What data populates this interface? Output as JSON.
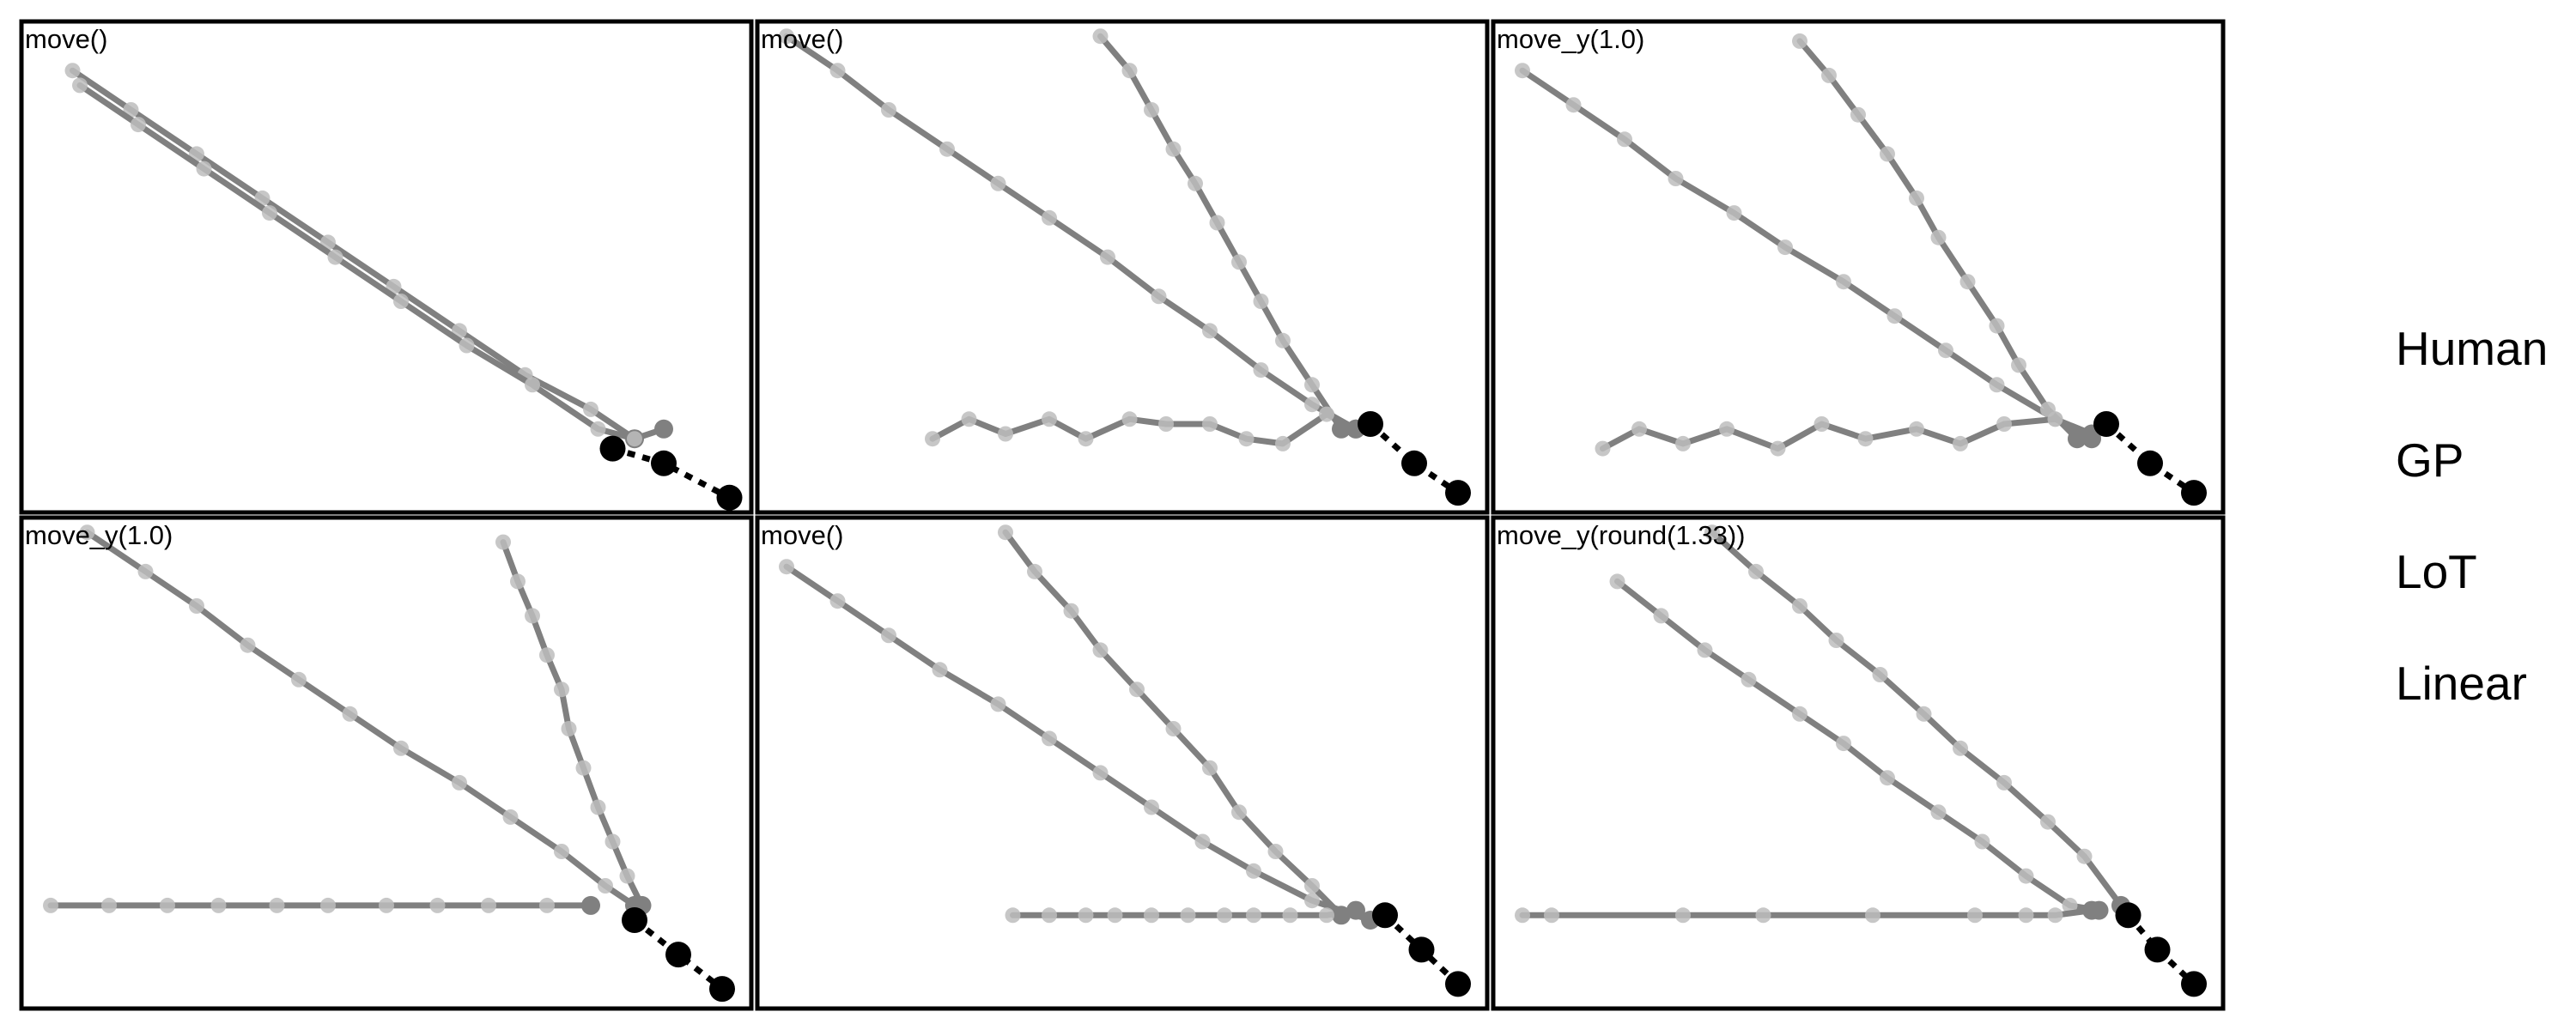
{
  "colors": {
    "trajectory_line": "#808080",
    "trajectory_point": "#bdbdbd",
    "endpoint": "#808080",
    "target": "#000000",
    "frame": "#000000"
  },
  "legend": [
    "Human",
    "GP",
    "LoT",
    "Linear"
  ],
  "panels": [
    {
      "title": "move()",
      "trajectories": [
        {
          "points": [
            [
              0.07,
              0.1
            ],
            [
              0.15,
              0.18
            ],
            [
              0.24,
              0.27
            ],
            [
              0.33,
              0.36
            ],
            [
              0.42,
              0.45
            ],
            [
              0.51,
              0.54
            ],
            [
              0.6,
              0.63
            ],
            [
              0.69,
              0.72
            ],
            [
              0.78,
              0.79
            ],
            [
              0.84,
              0.85
            ]
          ]
        },
        {
          "points": [
            [
              0.08,
              0.13
            ],
            [
              0.16,
              0.21
            ],
            [
              0.25,
              0.3
            ],
            [
              0.34,
              0.39
            ],
            [
              0.43,
              0.48
            ],
            [
              0.52,
              0.57
            ],
            [
              0.61,
              0.66
            ],
            [
              0.7,
              0.74
            ],
            [
              0.79,
              0.83
            ],
            [
              0.84,
              0.85
            ],
            [
              0.88,
              0.83
            ]
          ]
        }
      ],
      "targets": [
        [
          0.81,
          0.87
        ],
        [
          0.88,
          0.9
        ],
        [
          0.97,
          0.97
        ]
      ]
    },
    {
      "title": "move()",
      "trajectories": [
        {
          "points": [
            [
              0.04,
              0.03
            ],
            [
              0.11,
              0.1
            ],
            [
              0.18,
              0.18
            ],
            [
              0.26,
              0.26
            ],
            [
              0.33,
              0.33
            ],
            [
              0.4,
              0.4
            ],
            [
              0.48,
              0.48
            ],
            [
              0.55,
              0.56
            ],
            [
              0.62,
              0.63
            ],
            [
              0.69,
              0.71
            ],
            [
              0.76,
              0.78
            ],
            [
              0.82,
              0.83
            ]
          ]
        },
        {
          "points": [
            [
              0.47,
              0.03
            ],
            [
              0.51,
              0.1
            ],
            [
              0.54,
              0.18
            ],
            [
              0.57,
              0.26
            ],
            [
              0.6,
              0.33
            ],
            [
              0.63,
              0.41
            ],
            [
              0.66,
              0.49
            ],
            [
              0.69,
              0.57
            ],
            [
              0.72,
              0.65
            ],
            [
              0.76,
              0.74
            ],
            [
              0.8,
              0.83
            ]
          ]
        },
        {
          "points": [
            [
              0.24,
              0.85
            ],
            [
              0.29,
              0.81
            ],
            [
              0.34,
              0.84
            ],
            [
              0.4,
              0.81
            ],
            [
              0.45,
              0.85
            ],
            [
              0.51,
              0.81
            ],
            [
              0.56,
              0.82
            ],
            [
              0.62,
              0.82
            ],
            [
              0.67,
              0.85
            ],
            [
              0.72,
              0.86
            ],
            [
              0.78,
              0.8
            ],
            [
              0.82,
              0.83
            ]
          ]
        }
      ],
      "targets": [
        [
          0.84,
          0.82
        ],
        [
          0.9,
          0.9
        ],
        [
          0.96,
          0.96
        ]
      ]
    },
    {
      "title": "move_y(1.0)",
      "trajectories": [
        {
          "points": [
            [
              0.04,
              0.1
            ],
            [
              0.11,
              0.17
            ],
            [
              0.18,
              0.24
            ],
            [
              0.25,
              0.32
            ],
            [
              0.33,
              0.39
            ],
            [
              0.4,
              0.46
            ],
            [
              0.48,
              0.53
            ],
            [
              0.55,
              0.6
            ],
            [
              0.62,
              0.67
            ],
            [
              0.69,
              0.74
            ],
            [
              0.77,
              0.81
            ],
            [
              0.82,
              0.85
            ]
          ]
        },
        {
          "points": [
            [
              0.42,
              0.04
            ],
            [
              0.46,
              0.11
            ],
            [
              0.5,
              0.19
            ],
            [
              0.54,
              0.27
            ],
            [
              0.58,
              0.36
            ],
            [
              0.61,
              0.44
            ],
            [
              0.65,
              0.53
            ],
            [
              0.69,
              0.62
            ],
            [
              0.72,
              0.7
            ],
            [
              0.76,
              0.79
            ],
            [
              0.8,
              0.85
            ]
          ]
        },
        {
          "points": [
            [
              0.15,
              0.87
            ],
            [
              0.2,
              0.83
            ],
            [
              0.26,
              0.86
            ],
            [
              0.32,
              0.83
            ],
            [
              0.39,
              0.87
            ],
            [
              0.45,
              0.82
            ],
            [
              0.51,
              0.85
            ],
            [
              0.58,
              0.83
            ],
            [
              0.64,
              0.86
            ],
            [
              0.7,
              0.82
            ],
            [
              0.77,
              0.81
            ],
            [
              0.82,
              0.84
            ]
          ]
        }
      ],
      "targets": [
        [
          0.84,
          0.82
        ],
        [
          0.9,
          0.9
        ],
        [
          0.96,
          0.96
        ]
      ]
    },
    {
      "title": "move_y(1.0)",
      "trajectories": [
        {
          "points": [
            [
              0.09,
              0.03
            ],
            [
              0.17,
              0.11
            ],
            [
              0.24,
              0.18
            ],
            [
              0.31,
              0.26
            ],
            [
              0.38,
              0.33
            ],
            [
              0.45,
              0.4
            ],
            [
              0.52,
              0.47
            ],
            [
              0.6,
              0.54
            ],
            [
              0.67,
              0.61
            ],
            [
              0.74,
              0.68
            ],
            [
              0.8,
              0.75
            ],
            [
              0.84,
              0.79
            ]
          ]
        },
        {
          "points": [
            [
              0.66,
              0.05
            ],
            [
              0.68,
              0.13
            ],
            [
              0.7,
              0.2
            ],
            [
              0.72,
              0.28
            ],
            [
              0.74,
              0.35
            ],
            [
              0.75,
              0.43
            ],
            [
              0.77,
              0.51
            ],
            [
              0.79,
              0.59
            ],
            [
              0.81,
              0.66
            ],
            [
              0.83,
              0.73
            ],
            [
              0.85,
              0.79
            ]
          ]
        },
        {
          "points": [
            [
              0.04,
              0.79
            ],
            [
              0.12,
              0.79
            ],
            [
              0.2,
              0.79
            ],
            [
              0.27,
              0.79
            ],
            [
              0.35,
              0.79
            ],
            [
              0.42,
              0.79
            ],
            [
              0.5,
              0.79
            ],
            [
              0.57,
              0.79
            ],
            [
              0.64,
              0.79
            ],
            [
              0.72,
              0.79
            ],
            [
              0.78,
              0.79
            ]
          ]
        }
      ],
      "targets": [
        [
          0.84,
          0.82
        ],
        [
          0.9,
          0.89
        ],
        [
          0.96,
          0.96
        ]
      ]
    },
    {
      "title": "move()",
      "trajectories": [
        {
          "points": [
            [
              0.04,
              0.1
            ],
            [
              0.11,
              0.17
            ],
            [
              0.18,
              0.24
            ],
            [
              0.25,
              0.31
            ],
            [
              0.33,
              0.38
            ],
            [
              0.4,
              0.45
            ],
            [
              0.47,
              0.52
            ],
            [
              0.54,
              0.59
            ],
            [
              0.61,
              0.66
            ],
            [
              0.68,
              0.72
            ],
            [
              0.76,
              0.78
            ],
            [
              0.84,
              0.82
            ]
          ]
        },
        {
          "points": [
            [
              0.34,
              0.03
            ],
            [
              0.38,
              0.11
            ],
            [
              0.43,
              0.19
            ],
            [
              0.47,
              0.27
            ],
            [
              0.52,
              0.35
            ],
            [
              0.57,
              0.43
            ],
            [
              0.62,
              0.51
            ],
            [
              0.66,
              0.6
            ],
            [
              0.71,
              0.68
            ],
            [
              0.76,
              0.75
            ],
            [
              0.8,
              0.81
            ]
          ]
        },
        {
          "points": [
            [
              0.35,
              0.81
            ],
            [
              0.4,
              0.81
            ],
            [
              0.45,
              0.81
            ],
            [
              0.49,
              0.81
            ],
            [
              0.54,
              0.81
            ],
            [
              0.59,
              0.81
            ],
            [
              0.64,
              0.81
            ],
            [
              0.68,
              0.81
            ],
            [
              0.73,
              0.81
            ],
            [
              0.78,
              0.81
            ],
            [
              0.82,
              0.8
            ]
          ]
        }
      ],
      "targets": [
        [
          0.86,
          0.81
        ],
        [
          0.91,
          0.88
        ],
        [
          0.96,
          0.95
        ]
      ]
    },
    {
      "title": "move_y(round(1.33))",
      "trajectories": [
        {
          "points": [
            [
              0.17,
              0.13
            ],
            [
              0.23,
              0.2
            ],
            [
              0.29,
              0.27
            ],
            [
              0.35,
              0.33
            ],
            [
              0.42,
              0.4
            ],
            [
              0.48,
              0.46
            ],
            [
              0.54,
              0.53
            ],
            [
              0.61,
              0.6
            ],
            [
              0.67,
              0.66
            ],
            [
              0.73,
              0.73
            ],
            [
              0.79,
              0.79
            ],
            [
              0.83,
              0.8
            ]
          ]
        },
        {
          "points": [
            [
              0.3,
              0.03
            ],
            [
              0.36,
              0.11
            ],
            [
              0.42,
              0.18
            ],
            [
              0.47,
              0.25
            ],
            [
              0.53,
              0.32
            ],
            [
              0.59,
              0.4
            ],
            [
              0.64,
              0.47
            ],
            [
              0.7,
              0.54
            ],
            [
              0.76,
              0.62
            ],
            [
              0.81,
              0.69
            ],
            [
              0.86,
              0.79
            ]
          ]
        },
        {
          "points": [
            [
              0.04,
              0.81
            ],
            [
              0.08,
              0.81
            ],
            [
              0.26,
              0.81
            ],
            [
              0.37,
              0.81
            ],
            [
              0.52,
              0.81
            ],
            [
              0.66,
              0.81
            ],
            [
              0.73,
              0.81
            ],
            [
              0.77,
              0.81
            ],
            [
              0.82,
              0.8
            ]
          ]
        }
      ],
      "targets": [
        [
          0.87,
          0.81
        ],
        [
          0.91,
          0.88
        ],
        [
          0.96,
          0.95
        ]
      ]
    }
  ]
}
